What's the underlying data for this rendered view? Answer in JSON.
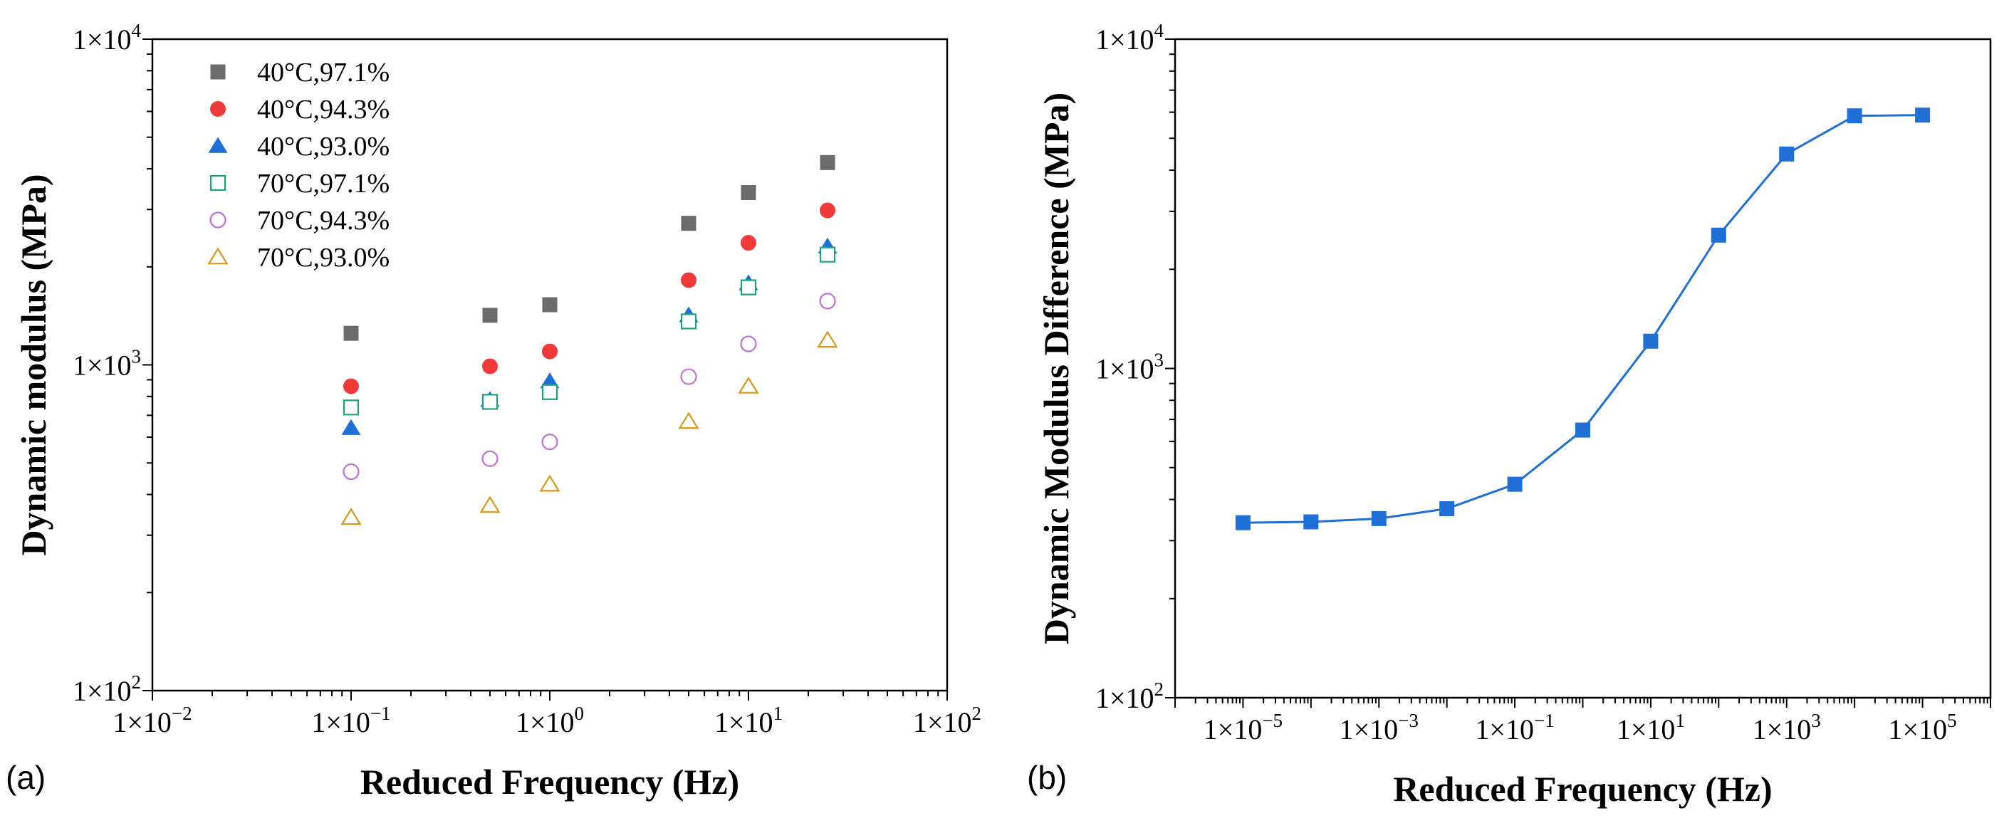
{
  "panel_labels": [
    "(a)",
    "(b)"
  ],
  "chart_data": [
    {
      "type": "scatter",
      "xlabel": "Reduced Frequency (Hz)",
      "ylabel": "Dynamic modulus (MPa)",
      "x_scale": "log",
      "y_scale": "log",
      "xlim": [
        0.01,
        100
      ],
      "ylim": [
        100,
        10000
      ],
      "x_ticks": [
        {
          "value": 0.01,
          "mantissa": "1×10",
          "exp": "−2"
        },
        {
          "value": 0.1,
          "mantissa": "1×10",
          "exp": "−1"
        },
        {
          "value": 1,
          "mantissa": "1×10",
          "exp": "0"
        },
        {
          "value": 10,
          "mantissa": "1×10",
          "exp": "1"
        },
        {
          "value": 100,
          "mantissa": "1×10",
          "exp": "2"
        }
      ],
      "y_ticks": [
        {
          "value": 100,
          "mantissa": "1×10",
          "exp": "2"
        },
        {
          "value": 1000,
          "mantissa": "1×10",
          "exp": "3"
        },
        {
          "value": 10000,
          "mantissa": "1×10",
          "exp": "4"
        }
      ],
      "grid": false,
      "legend_position": "top-left",
      "series": [
        {
          "name": "40°C,97.1%",
          "marker": "square",
          "filled": true,
          "color": "#6b6b6b",
          "x": [
            0.1,
            0.5,
            1,
            5,
            10,
            25
          ],
          "y": [
            1250,
            1420,
            1530,
            2720,
            3380,
            4180
          ]
        },
        {
          "name": "40°C,94.3%",
          "marker": "circle",
          "filled": true,
          "color": "#f03a3a",
          "x": [
            0.1,
            0.5,
            1,
            5,
            10,
            25
          ],
          "y": [
            860,
            990,
            1100,
            1820,
            2370,
            2980
          ]
        },
        {
          "name": "40°C,93.0%",
          "marker": "triangle",
          "filled": true,
          "color": "#1f6fd6",
          "x": [
            0.1,
            0.5,
            1,
            5,
            10,
            25
          ],
          "y": [
            640,
            780,
            890,
            1420,
            1780,
            2310
          ]
        },
        {
          "name": "70°C,97.1%",
          "marker": "square",
          "filled": false,
          "color": "#1aa37a",
          "x": [
            0.1,
            0.5,
            1,
            5,
            10,
            25
          ],
          "y": [
            740,
            770,
            825,
            1360,
            1730,
            2180
          ]
        },
        {
          "name": "70°C,94.3%",
          "marker": "circle",
          "filled": false,
          "color": "#c46ed8",
          "x": [
            0.1,
            0.5,
            1,
            5,
            10,
            25
          ],
          "y": [
            470,
            515,
            580,
            920,
            1160,
            1570
          ]
        },
        {
          "name": "70°C,93.0%",
          "marker": "triangle",
          "filled": false,
          "color": "#d9961a",
          "x": [
            0.1,
            0.5,
            1,
            5,
            10,
            25
          ],
          "y": [
            340,
            370,
            430,
            670,
            860,
            1190
          ]
        }
      ]
    },
    {
      "type": "line",
      "xlabel": "Reduced Frequency (Hz)",
      "ylabel": "Dynamic Modulus Difference (MPa)",
      "x_scale": "log",
      "y_scale": "log",
      "xlim": [
        1e-06,
        1000000
      ],
      "ylim": [
        100,
        10000
      ],
      "x_ticks": [
        {
          "value": 1e-05,
          "mantissa": "1×10",
          "exp": "−5"
        },
        {
          "value": 0.001,
          "mantissa": "1×10",
          "exp": "−3"
        },
        {
          "value": 0.1,
          "mantissa": "1×10",
          "exp": "−1"
        },
        {
          "value": 10,
          "mantissa": "1×10",
          "exp": "1"
        },
        {
          "value": 1000,
          "mantissa": "1×10",
          "exp": "3"
        },
        {
          "value": 100000,
          "mantissa": "1×10",
          "exp": "5"
        }
      ],
      "y_ticks": [
        {
          "value": 100,
          "mantissa": "1×10",
          "exp": "2"
        },
        {
          "value": 1000,
          "mantissa": "1×10",
          "exp": "3"
        },
        {
          "value": 10000,
          "mantissa": "1×10",
          "exp": "4"
        }
      ],
      "grid": false,
      "series": [
        {
          "marker": "square",
          "filled": true,
          "color": "#1f6fd6",
          "x": [
            1e-05,
            0.0001,
            0.001,
            0.01,
            0.1,
            1,
            10,
            100,
            1000,
            10000,
            100000
          ],
          "y": [
            340,
            342,
            350,
            375,
            445,
            650,
            1210,
            2540,
            4480,
            5850,
            5880
          ]
        }
      ]
    }
  ]
}
